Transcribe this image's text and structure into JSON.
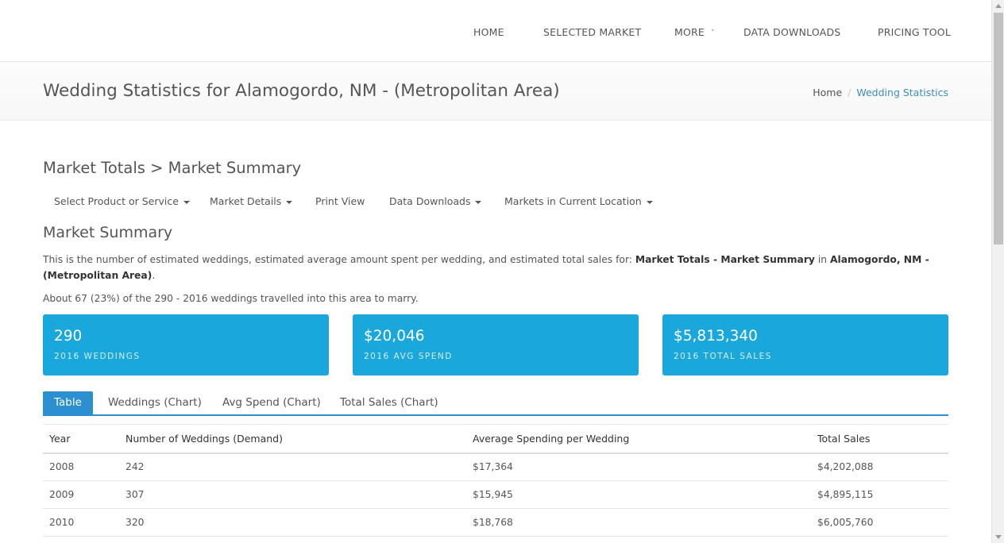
{
  "topnav": {
    "items": [
      {
        "label": "HOME"
      },
      {
        "label": "SELECTED MARKET"
      },
      {
        "label": "MORE"
      },
      {
        "label": "DATA DOWNLOADS"
      },
      {
        "label": "PRICING TOOL"
      }
    ],
    "more_caret": "˅"
  },
  "header": {
    "title": "Wedding Statistics for Alamogordo, NM - (Metropolitan Area)",
    "breadcrumb": {
      "home": "Home",
      "separator": "/",
      "current": "Wedding Statistics"
    }
  },
  "content": {
    "section_title": "Market Totals > Market Summary",
    "subnav": [
      {
        "label": "Select Product or Service"
      },
      {
        "label": "Market Details"
      },
      {
        "label": "Print View"
      },
      {
        "label": "Data Downloads"
      },
      {
        "label": "Markets in Current Location"
      }
    ],
    "summary_title": "Market Summary",
    "description": {
      "prefix": "This is the number of estimated weddings, estimated average amount spent per wedding, and estimated total sales for: ",
      "bold_market": "Market Totals - Market Summary",
      "middle": " in ",
      "bold_location": "Alamogordo, NM - (Metropolitan Area)",
      "suffix": "."
    },
    "travel_note": "About 67 (23%) of the 290 - 2016 weddings travelled into this area to marry."
  },
  "stats": [
    {
      "value": "290",
      "label": "2016 WEDDINGS"
    },
    {
      "value": "$20,046",
      "label": "2016 AVG SPEND"
    },
    {
      "value": "$5,813,340",
      "label": "2016 TOTAL SALES"
    }
  ],
  "tabs": [
    {
      "label": "Table",
      "active": true
    },
    {
      "label": "Weddings (Chart)"
    },
    {
      "label": "Avg Spend (Chart)"
    },
    {
      "label": "Total Sales (Chart)"
    }
  ],
  "table": {
    "headers": [
      "Year",
      "Number of Weddings (Demand)",
      "Average Spending per Wedding",
      "Total Sales"
    ],
    "rows": [
      [
        "2008",
        "242",
        "$17,364",
        "$4,202,088"
      ],
      [
        "2009",
        "307",
        "$15,945",
        "$4,895,115"
      ],
      [
        "2010",
        "320",
        "$18,768",
        "$6,005,760"
      ]
    ]
  },
  "colors": {
    "accent": "#1aa7dc",
    "tab_active": "#2c8fd0",
    "link": "#3c8dbc"
  }
}
